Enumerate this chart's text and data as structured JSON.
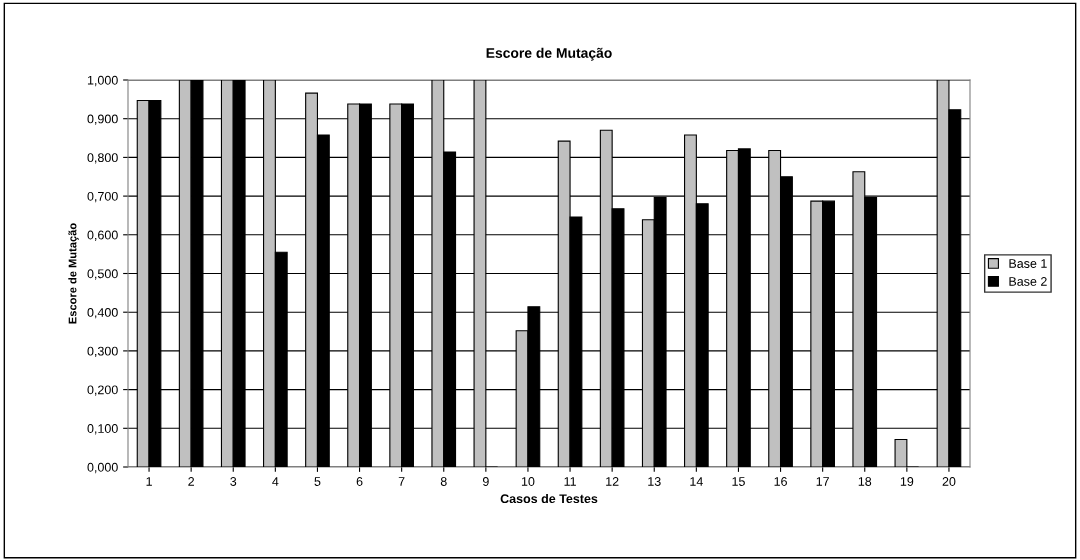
{
  "chart_data": {
    "type": "bar",
    "title": "Escore de Mutação",
    "xlabel": "Casos de Testes",
    "ylabel": "Escore de Mutação",
    "categories": [
      "1",
      "2",
      "3",
      "4",
      "5",
      "6",
      "7",
      "8",
      "9",
      "10",
      "11",
      "12",
      "13",
      "14",
      "15",
      "16",
      "17",
      "18",
      "19",
      "20"
    ],
    "series": [
      {
        "name": "Base 1",
        "color": "#c0c0c0",
        "values": [
          0.947,
          1.0,
          1.0,
          1.0,
          0.966,
          0.938,
          0.938,
          1.0,
          1.0,
          0.352,
          0.842,
          0.87,
          0.639,
          0.858,
          0.818,
          0.818,
          0.687,
          0.763,
          0.071,
          1.0
        ]
      },
      {
        "name": "Base 2",
        "color": "#000000",
        "values": [
          0.947,
          1.0,
          1.0,
          0.555,
          0.858,
          0.938,
          0.938,
          0.814,
          0.0,
          0.414,
          0.646,
          0.667,
          0.696,
          0.68,
          0.822,
          0.75,
          0.687,
          0.696,
          0.0,
          0.923
        ]
      }
    ],
    "ylim": [
      0,
      1
    ],
    "yticks": [
      {
        "value": 0,
        "label": "0,000"
      },
      {
        "value": 0.1,
        "label": "0,100"
      },
      {
        "value": 0.2,
        "label": "0,200"
      },
      {
        "value": 0.3,
        "label": "0,300"
      },
      {
        "value": 0.4,
        "label": "0,400"
      },
      {
        "value": 0.5,
        "label": "0,500"
      },
      {
        "value": 0.6,
        "label": "0,600"
      },
      {
        "value": 0.7,
        "label": "0,700"
      },
      {
        "value": 0.8,
        "label": "0,800"
      },
      {
        "value": 0.9,
        "label": "0,900"
      },
      {
        "value": 1,
        "label": "1,000"
      }
    ],
    "grid": "y",
    "legend": "right"
  }
}
